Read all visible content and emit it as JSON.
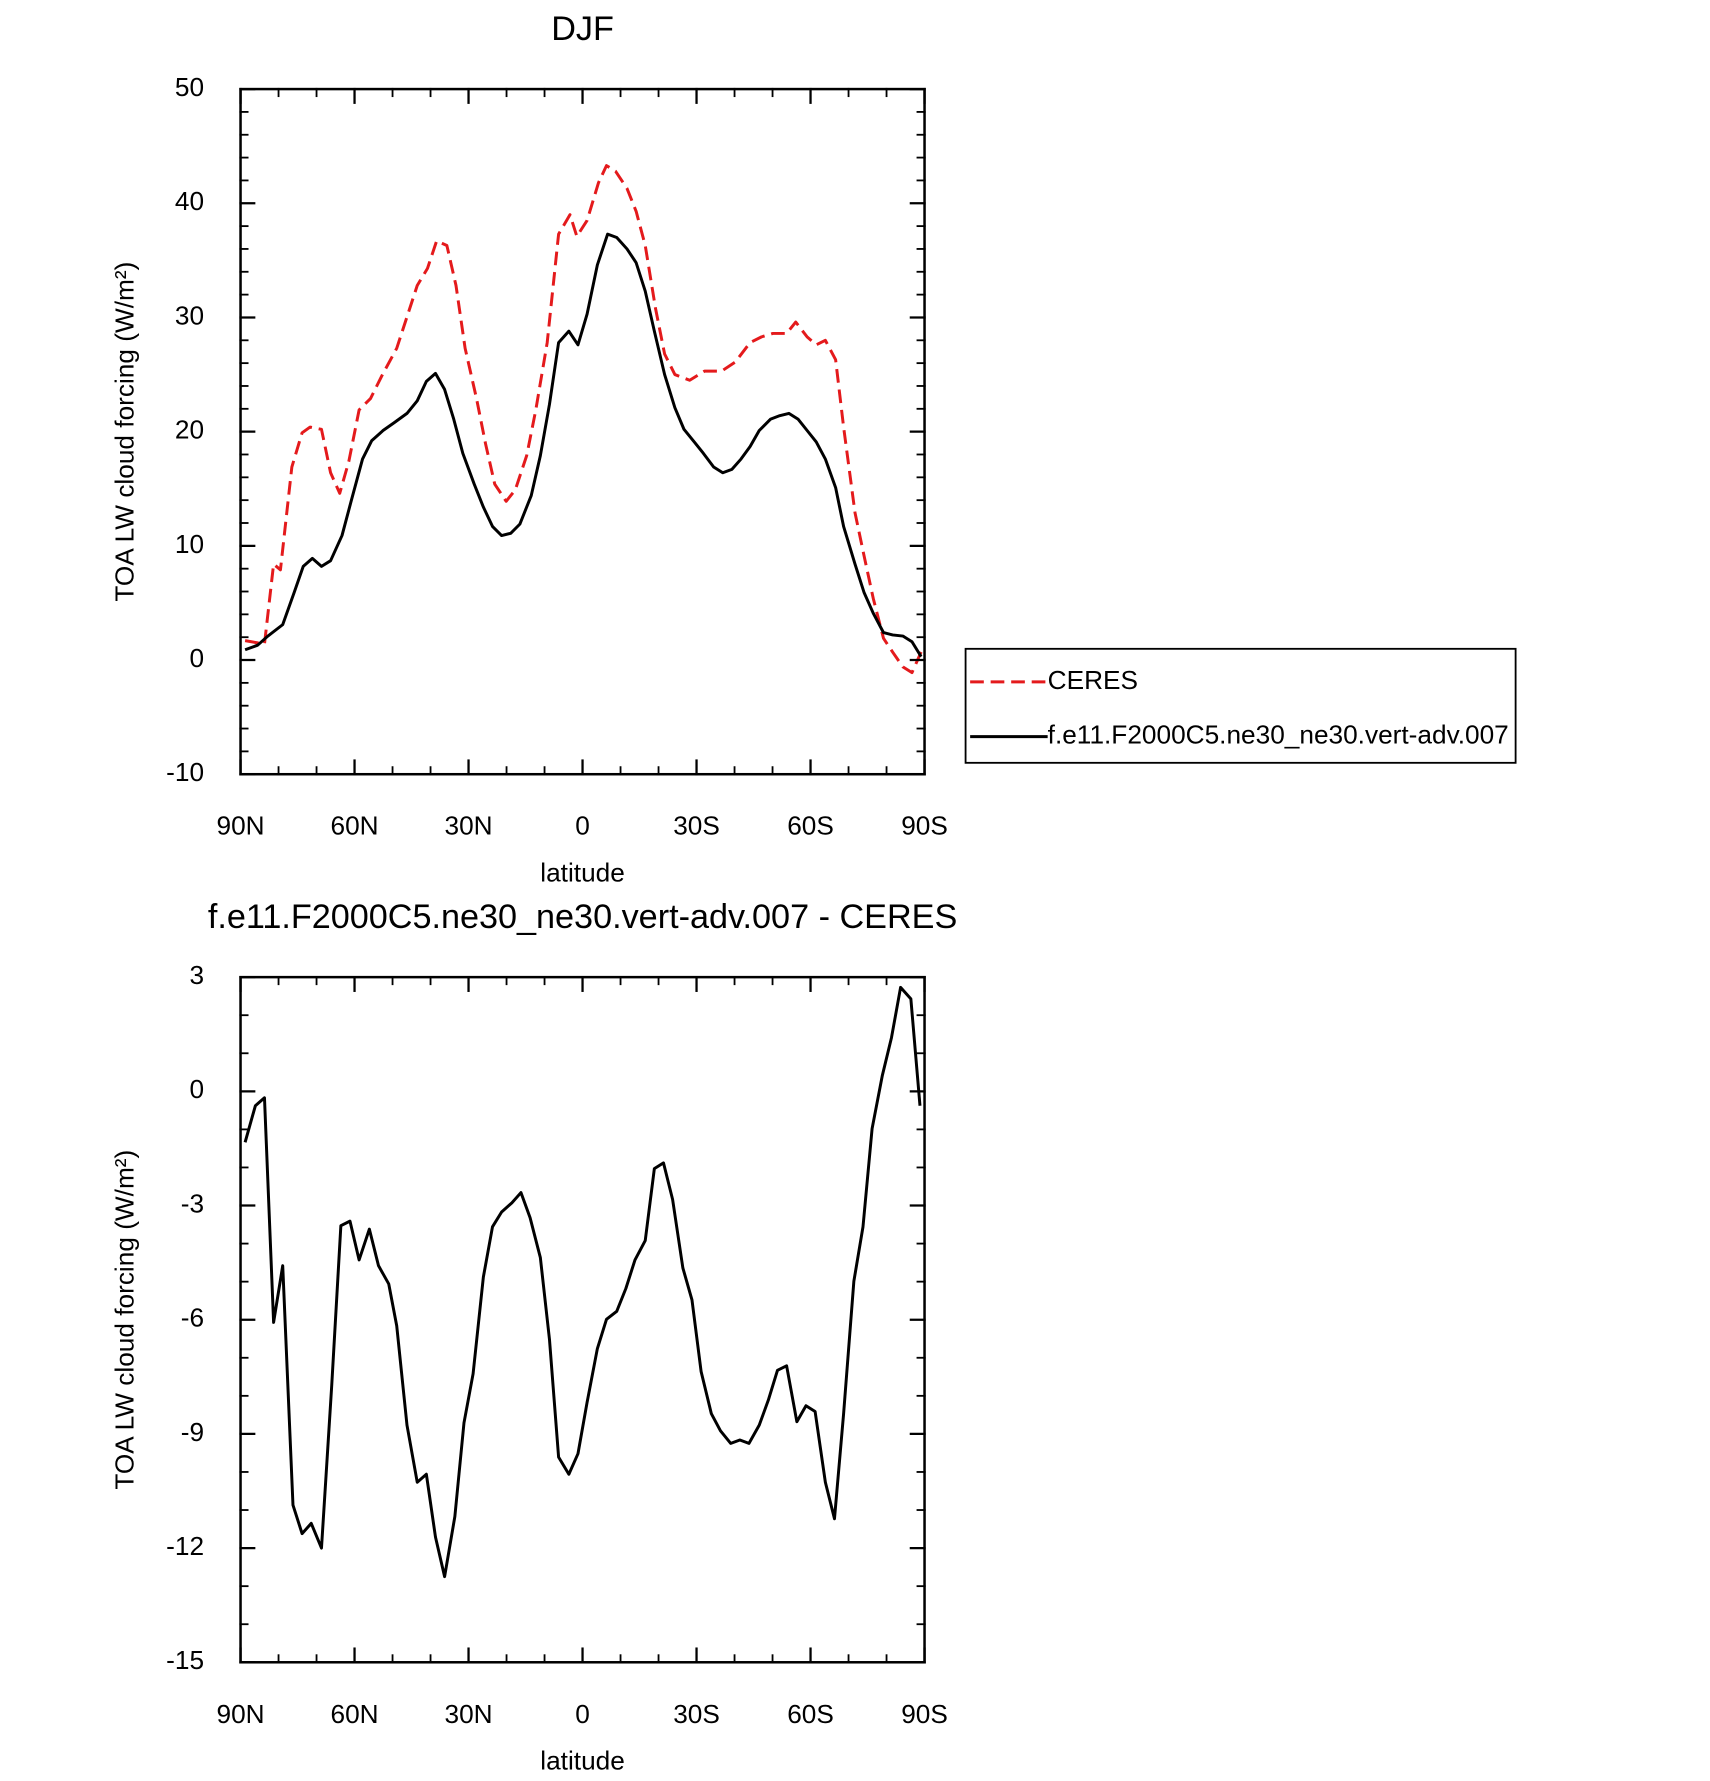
{
  "chart_data": [
    {
      "type": "line",
      "title": "DJF",
      "xlabel": "latitude",
      "ylabel": "TOA LW cloud forcing (W/m²)",
      "xlim": [
        90,
        -90
      ],
      "xticks": [
        {
          "value": 90,
          "label": "90N"
        },
        {
          "value": 60,
          "label": "60N"
        },
        {
          "value": 30,
          "label": "30N"
        },
        0,
        {
          "value": -30,
          "label": "30S"
        },
        {
          "value": -60,
          "label": "60S"
        },
        {
          "value": -90,
          "label": "90S"
        }
      ],
      "xminorticks": [
        80,
        70,
        50,
        40,
        20,
        10,
        -10,
        -20,
        -40,
        -50,
        -70,
        -80
      ],
      "ylim": [
        -10,
        50
      ],
      "yticks": [
        -10,
        0,
        10,
        20,
        30,
        40,
        50
      ],
      "yminorticks": [
        -8,
        -6,
        -4,
        -2,
        2,
        4,
        6,
        8,
        12,
        14,
        16,
        18,
        22,
        24,
        26,
        28,
        32,
        34,
        36,
        38,
        42,
        44,
        46,
        48
      ],
      "legend": "outside-right",
      "series": [
        {
          "name": "CERES",
          "color": "#e41a1c",
          "dash": true,
          "x": [
            88.8,
            83.7,
            81.3,
            79.5,
            76.5,
            73.8,
            71.7,
            68.7,
            66.3,
            63.9,
            61.5,
            58.8,
            55.8,
            52.8,
            48.9,
            43.5,
            40.8,
            38.4,
            35.7,
            33.3,
            30.9,
            27.9,
            25.5,
            23.1,
            20.1,
            17.7,
            14.7,
            12.3,
            9.3,
            6.3,
            3.3,
            1.5,
            -1.2,
            -4.2,
            -6.3,
            -8.7,
            -11.7,
            -14.1,
            -16.5,
            -19.2,
            -21.6,
            -24.3,
            -28.2,
            -32.1,
            -36.6,
            -40.2,
            -44.1,
            -47.1,
            -50.1,
            -53.7,
            -56.1,
            -59.1,
            -61.5,
            -63.9,
            -66.6,
            -68.7,
            -71.7,
            -74.1,
            -76.5,
            -79.2,
            -81.6,
            -84.3,
            -86.7,
            -89.1
          ],
          "values": [
            1.7,
            1.4,
            8.4,
            7.9,
            16.9,
            19.9,
            20.4,
            20.2,
            16.4,
            14.6,
            17.4,
            21.9,
            22.9,
            24.9,
            27.3,
            32.8,
            34.3,
            36.7,
            36.3,
            32.8,
            27.3,
            22.9,
            18.9,
            15.4,
            13.9,
            14.9,
            17.9,
            21.9,
            27.8,
            37.3,
            39.0,
            37.1,
            38.5,
            41.8,
            43.3,
            42.8,
            41.3,
            39.3,
            36.3,
            30.8,
            26.8,
            25.0,
            24.5,
            25.3,
            25.3,
            26.1,
            27.8,
            28.3,
            28.6,
            28.6,
            29.6,
            28.3,
            27.6,
            28.0,
            26.3,
            20.4,
            12.9,
            9.1,
            5.4,
            1.9,
            0.7,
            -0.6,
            -1.1,
            0.7
          ]
        },
        {
          "name": "f.e11.F2000C5.ne30_ne30.vert-adv.007",
          "color": "#000000",
          "dash": false,
          "x": [
            88.8,
            85.5,
            82.8,
            78.9,
            75.9,
            73.5,
            71.1,
            68.7,
            66.3,
            63.3,
            60.9,
            57.9,
            55.5,
            52.5,
            49.5,
            46.2,
            43.5,
            41.1,
            38.7,
            36.3,
            33.9,
            31.5,
            28.5,
            26.1,
            23.7,
            21.3,
            18.9,
            16.5,
            13.5,
            11.1,
            8.7,
            6.3,
            3.6,
            1.2,
            -1.2,
            -3.9,
            -6.6,
            -9.0,
            -11.7,
            -14.1,
            -16.5,
            -18.9,
            -21.6,
            -24.3,
            -26.7,
            -29.4,
            -31.8,
            -34.5,
            -36.9,
            -39.3,
            -41.7,
            -44.1,
            -46.5,
            -49.5,
            -51.9,
            -54.3,
            -56.7,
            -59.1,
            -61.5,
            -63.9,
            -66.6,
            -68.7,
            -71.7,
            -74.1,
            -76.5,
            -79.2,
            -81.6,
            -84.3,
            -86.7,
            -89.1
          ],
          "values": [
            0.9,
            1.3,
            2.1,
            3.1,
            5.9,
            8.2,
            8.9,
            8.2,
            8.7,
            10.9,
            13.9,
            17.6,
            19.2,
            20.1,
            20.8,
            21.6,
            22.7,
            24.4,
            25.1,
            23.7,
            21.1,
            18.1,
            15.4,
            13.4,
            11.7,
            10.9,
            11.1,
            11.9,
            14.4,
            17.9,
            22.4,
            27.8,
            28.8,
            27.6,
            30.3,
            34.6,
            37.3,
            37.0,
            36.0,
            34.8,
            32.3,
            28.8,
            25.0,
            22.1,
            20.2,
            19.1,
            18.1,
            16.9,
            16.4,
            16.7,
            17.6,
            18.7,
            20.1,
            21.1,
            21.4,
            21.6,
            21.1,
            20.1,
            19.1,
            17.6,
            15.1,
            11.7,
            8.4,
            5.9,
            4.1,
            2.4,
            2.2,
            2.1,
            1.6,
            0.3
          ]
        }
      ]
    },
    {
      "type": "line",
      "title": "f.e11.F2000C5.ne30_ne30.vert-adv.007 - CERES",
      "xlabel": "latitude",
      "ylabel": "TOA LW cloud forcing (W/m²)",
      "xlim": [
        90,
        -90
      ],
      "xticks": [
        {
          "value": 90,
          "label": "90N"
        },
        {
          "value": 60,
          "label": "60N"
        },
        {
          "value": 30,
          "label": "30N"
        },
        0,
        {
          "value": -30,
          "label": "30S"
        },
        {
          "value": -60,
          "label": "60S"
        },
        {
          "value": -90,
          "label": "90S"
        }
      ],
      "xminorticks": [
        80,
        70,
        50,
        40,
        20,
        10,
        -10,
        -20,
        -40,
        -50,
        -70,
        -80
      ],
      "ylim": [
        -15,
        3
      ],
      "yticks": [
        -15,
        -12,
        -9,
        -6,
        -3,
        0,
        3
      ],
      "yminorticks": [
        -14,
        -13,
        -11,
        -10,
        -8,
        -7,
        -5,
        -4,
        -2,
        -1,
        1,
        2
      ],
      "series": [
        {
          "color": "#000000",
          "dash": false,
          "x": [
            88.8,
            86.1,
            83.7,
            81.3,
            78.9,
            76.2,
            73.8,
            71.4,
            68.7,
            66.0,
            63.6,
            61.2,
            58.8,
            56.1,
            53.7,
            51.0,
            48.9,
            46.2,
            43.5,
            41.1,
            38.7,
            36.3,
            33.6,
            31.2,
            28.8,
            26.1,
            23.7,
            21.3,
            18.6,
            16.2,
            13.8,
            11.1,
            8.7,
            6.3,
            3.6,
            1.2,
            -1.2,
            -3.9,
            -6.3,
            -9.0,
            -11.4,
            -13.8,
            -16.5,
            -18.9,
            -21.3,
            -23.7,
            -26.4,
            -28.8,
            -31.2,
            -33.9,
            -36.3,
            -39.0,
            -41.4,
            -43.8,
            -46.5,
            -48.9,
            -51.3,
            -53.7,
            -56.4,
            -58.8,
            -61.2,
            -63.9,
            -66.3,
            -68.7,
            -71.4,
            -73.8,
            -76.2,
            -78.9,
            -81.3,
            -83.7,
            -86.4,
            -88.8
          ],
          "values": [
            -1.34,
            -0.38,
            -0.17,
            -6.07,
            -4.58,
            -10.87,
            -11.62,
            -11.35,
            -12.0,
            -7.72,
            -3.53,
            -3.41,
            -4.43,
            -3.62,
            -4.58,
            -5.06,
            -6.16,
            -8.77,
            -10.27,
            -10.06,
            -11.71,
            -12.75,
            -11.17,
            -8.71,
            -7.42,
            -4.88,
            -3.56,
            -3.17,
            -2.93,
            -2.66,
            -3.32,
            -4.37,
            -6.52,
            -9.61,
            -10.06,
            -9.52,
            -8.17,
            -6.76,
            -5.99,
            -5.78,
            -5.18,
            -4.43,
            -3.92,
            -2.03,
            -1.88,
            -2.84,
            -4.64,
            -5.48,
            -7.36,
            -8.47,
            -8.92,
            -9.25,
            -9.16,
            -9.25,
            -8.77,
            -8.11,
            -7.33,
            -7.21,
            -8.68,
            -8.26,
            -8.41,
            -10.27,
            -11.23,
            -8.47,
            -4.99,
            -3.56,
            -0.98,
            0.42,
            1.41,
            2.73,
            2.43,
            -0.38
          ]
        }
      ]
    }
  ]
}
